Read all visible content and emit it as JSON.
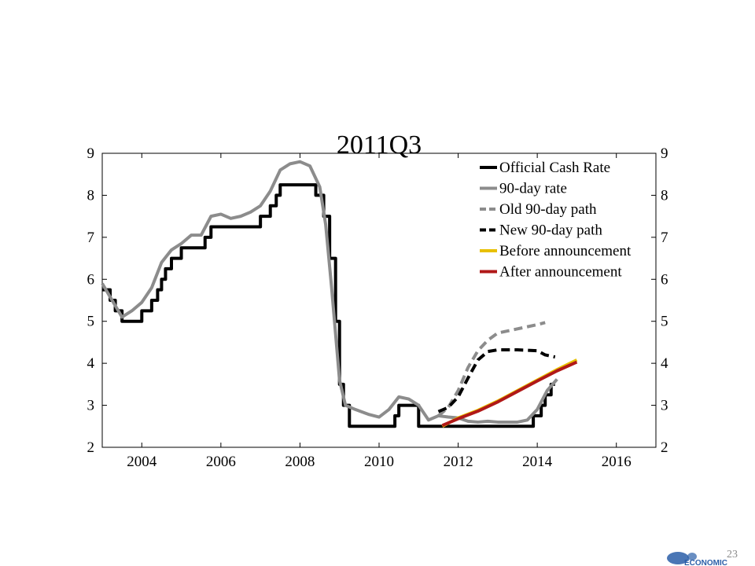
{
  "page": {
    "number": "23"
  },
  "chart_data": {
    "type": "line",
    "title": "2011Q3",
    "xlabel": "",
    "ylabel": "",
    "xlim": [
      2003,
      2017
    ],
    "ylim": [
      2,
      9
    ],
    "x_ticks": [
      "2004",
      "2006",
      "2008",
      "2010",
      "2012",
      "2014",
      "2016"
    ],
    "x_tick_values": [
      2004,
      2006,
      2008,
      2010,
      2012,
      2014,
      2016
    ],
    "y_ticks": [
      "2",
      "3",
      "4",
      "5",
      "6",
      "7",
      "8",
      "9"
    ],
    "y_tick_values": [
      2,
      3,
      4,
      5,
      6,
      7,
      8,
      9
    ],
    "legend_position": "top-right",
    "grid": false,
    "series": [
      {
        "name": "Official Cash Rate",
        "color": "#000000",
        "style": "step",
        "points": [
          [
            2003.0,
            5.75
          ],
          [
            2003.2,
            5.5
          ],
          [
            2003.33,
            5.25
          ],
          [
            2003.5,
            5.0
          ],
          [
            2004.0,
            5.25
          ],
          [
            2004.25,
            5.5
          ],
          [
            2004.4,
            5.75
          ],
          [
            2004.5,
            6.0
          ],
          [
            2004.6,
            6.25
          ],
          [
            2004.75,
            6.5
          ],
          [
            2005.0,
            6.75
          ],
          [
            2005.6,
            7.0
          ],
          [
            2005.75,
            7.25
          ],
          [
            2007.0,
            7.5
          ],
          [
            2007.25,
            7.75
          ],
          [
            2007.4,
            8.0
          ],
          [
            2007.5,
            8.25
          ],
          [
            2008.4,
            8.0
          ],
          [
            2008.6,
            7.5
          ],
          [
            2008.75,
            6.5
          ],
          [
            2008.9,
            5.0
          ],
          [
            2009.0,
            3.5
          ],
          [
            2009.1,
            3.0
          ],
          [
            2009.25,
            2.5
          ],
          [
            2010.4,
            2.75
          ],
          [
            2010.5,
            3.0
          ],
          [
            2011.0,
            2.5
          ],
          [
            2013.9,
            2.75
          ],
          [
            2014.1,
            3.0
          ],
          [
            2014.2,
            3.25
          ],
          [
            2014.35,
            3.5
          ],
          [
            2014.45,
            3.5
          ]
        ]
      },
      {
        "name": "90-day rate",
        "color": "#8c8c8c",
        "style": "line",
        "points": [
          [
            2003.0,
            5.9
          ],
          [
            2003.25,
            5.5
          ],
          [
            2003.5,
            5.1
          ],
          [
            2003.75,
            5.25
          ],
          [
            2004.0,
            5.45
          ],
          [
            2004.25,
            5.8
          ],
          [
            2004.5,
            6.4
          ],
          [
            2004.75,
            6.7
          ],
          [
            2005.0,
            6.85
          ],
          [
            2005.25,
            7.05
          ],
          [
            2005.5,
            7.05
          ],
          [
            2005.75,
            7.5
          ],
          [
            2006.0,
            7.55
          ],
          [
            2006.25,
            7.45
          ],
          [
            2006.5,
            7.5
          ],
          [
            2006.75,
            7.6
          ],
          [
            2007.0,
            7.75
          ],
          [
            2007.25,
            8.1
          ],
          [
            2007.5,
            8.6
          ],
          [
            2007.75,
            8.75
          ],
          [
            2008.0,
            8.8
          ],
          [
            2008.25,
            8.7
          ],
          [
            2008.5,
            8.2
          ],
          [
            2008.65,
            7.3
          ],
          [
            2008.8,
            5.8
          ],
          [
            2009.0,
            3.6
          ],
          [
            2009.15,
            3.0
          ],
          [
            2009.4,
            2.9
          ],
          [
            2009.75,
            2.78
          ],
          [
            2010.0,
            2.72
          ],
          [
            2010.25,
            2.9
          ],
          [
            2010.5,
            3.2
          ],
          [
            2010.75,
            3.15
          ],
          [
            2011.0,
            3.0
          ],
          [
            2011.25,
            2.65
          ],
          [
            2011.5,
            2.75
          ],
          [
            2011.75,
            2.72
          ],
          [
            2012.0,
            2.7
          ],
          [
            2012.25,
            2.62
          ],
          [
            2012.5,
            2.6
          ],
          [
            2012.75,
            2.62
          ],
          [
            2013.0,
            2.6
          ],
          [
            2013.25,
            2.6
          ],
          [
            2013.5,
            2.6
          ],
          [
            2013.75,
            2.65
          ],
          [
            2014.0,
            2.9
          ],
          [
            2014.25,
            3.35
          ],
          [
            2014.5,
            3.62
          ]
        ]
      },
      {
        "name": "Old 90-day path",
        "color": "#8c8c8c",
        "style": "dashed",
        "points": [
          [
            2011.5,
            2.75
          ],
          [
            2011.75,
            2.95
          ],
          [
            2012.0,
            3.35
          ],
          [
            2012.25,
            3.9
          ],
          [
            2012.5,
            4.3
          ],
          [
            2012.75,
            4.55
          ],
          [
            2013.0,
            4.72
          ],
          [
            2013.5,
            4.82
          ],
          [
            2014.0,
            4.92
          ],
          [
            2014.2,
            4.97
          ]
        ]
      },
      {
        "name": "New 90-day path",
        "color": "#000000",
        "style": "dashed",
        "points": [
          [
            2011.5,
            2.85
          ],
          [
            2011.75,
            2.95
          ],
          [
            2012.0,
            3.2
          ],
          [
            2012.25,
            3.65
          ],
          [
            2012.5,
            4.08
          ],
          [
            2012.75,
            4.28
          ],
          [
            2013.0,
            4.32
          ],
          [
            2013.5,
            4.32
          ],
          [
            2014.0,
            4.3
          ],
          [
            2014.2,
            4.2
          ],
          [
            2014.45,
            4.15
          ]
        ]
      },
      {
        "name": "Before announcement",
        "color": "#e8c000",
        "style": "line",
        "points": [
          [
            2011.6,
            2.5
          ],
          [
            2012.0,
            2.7
          ],
          [
            2012.5,
            2.88
          ],
          [
            2013.0,
            3.1
          ],
          [
            2013.5,
            3.35
          ],
          [
            2014.0,
            3.6
          ],
          [
            2014.5,
            3.85
          ],
          [
            2015.0,
            4.08
          ]
        ]
      },
      {
        "name": "After announcement",
        "color": "#b01818",
        "style": "line",
        "points": [
          [
            2011.6,
            2.52
          ],
          [
            2012.0,
            2.68
          ],
          [
            2012.5,
            2.86
          ],
          [
            2013.0,
            3.08
          ],
          [
            2013.5,
            3.33
          ],
          [
            2014.0,
            3.58
          ],
          [
            2014.5,
            3.82
          ],
          [
            2015.0,
            4.03
          ]
        ]
      }
    ]
  },
  "logo": {
    "text": "ECONOMIC"
  }
}
